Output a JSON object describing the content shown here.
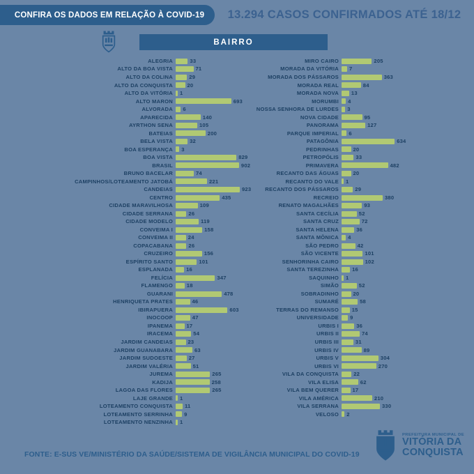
{
  "header": {
    "badge": "CONFIRA OS DADOS EM RELAÇÃO À COVID-19",
    "title": "13.294 CASOS CONFIRMADOS ATÉ 18/12",
    "column_label": "BAIRRO"
  },
  "chart_data": {
    "type": "bar",
    "orientation": "horizontal",
    "title": "13.294 CASOS CONFIRMADOS ATÉ 18/12",
    "unit": "casos confirmados de COVID-19 por bairro",
    "max_value": 923,
    "legend_position": "none",
    "grid": false,
    "left": {
      "categories": [
        "ALEGRIA",
        "ALTO DA BOA VISTA",
        "ALTO DA COLINA",
        "ALTO DA CONQUISTA",
        "ALTO DA VITÓRIA",
        "ALTO MARON",
        "ALVORADA",
        "APARECIDA",
        "AYRTHON SENA",
        "BATEIAS",
        "BELA VISTA",
        "BOA ESPERANÇA",
        "BOA VISTA",
        "BRASIL",
        "BRUNO BACELAR",
        "CAMPINHOS/LOTEAMENTO JATOBÁ",
        "CANDEIAS",
        "CENTRO",
        "CIDADE MARAVILHOSA",
        "CIDADE SERRANA",
        "CIDADE MODELO",
        "CONVEIMA I",
        "CONVEIMA II",
        "COPACABANA",
        "CRUZEIRO",
        "ESPÍRITO SANTO",
        "ESPLANADA",
        "FELÍCIA",
        "FLAMENGO",
        "GUARANI",
        "HENRIQUETA PRATES",
        "IBIRAPUERA",
        "INOCOOP",
        "IPANEMA",
        "IRACEMA",
        "JARDIM CANDEIAS",
        "JARDIM GUANABARA",
        "JARDIM SUDOESTE",
        "JARDIM VALÉRIA",
        "JUREMA",
        "KADIJA",
        "LAGOA DAS FLORES",
        "LAJE GRANDE",
        "LOTEAMENTO CONQUISTA",
        "LOTEAMENTO SERRINHA",
        "LOTEAMENTO NENZINHA"
      ],
      "values": [
        33,
        71,
        29,
        20,
        1,
        693,
        6,
        140,
        105,
        200,
        32,
        3,
        829,
        902,
        74,
        221,
        923,
        435,
        109,
        26,
        119,
        158,
        24,
        26,
        156,
        101,
        16,
        347,
        18,
        478,
        46,
        603,
        47,
        17,
        54,
        23,
        63,
        27,
        51,
        265,
        258,
        265,
        1,
        11,
        9,
        1
      ]
    },
    "right": {
      "categories": [
        "MIRO CAIRO",
        "MORADA DA VITÓRIA",
        "MORADA DOS PÁSSAROS",
        "MORADA REAL",
        "MORADA NOVA",
        "MORUMBI",
        "NOSSA SENHORA DE LURDES",
        "NOVA CIDADE",
        "PANORAMA",
        "PARQUE IMPERIAL",
        "PATAGÔNIA",
        "PEDRINHAS",
        "PETROPÓLIS",
        "PRIMAVERA",
        "RECANTO DAS ÁGUAS",
        "RECANTO DO VALE",
        "RECANTO DOS PÁSSAROS",
        "RECREIO",
        "RENATO MAGALHÃES",
        "SANTA CECÍLIA",
        "SANTA CRUZ",
        "SANTA HELENA",
        "SANTA MÔNICA",
        "SÃO PEDRO",
        "SÃO VICENTE",
        "SENHORINHA CAIRO",
        "SANTA TEREZINHA",
        "SAQUINHO",
        "SIMÃO",
        "SOBRADINHO",
        "SUMARÉ",
        "TERRAS DO REMANSO",
        "UNIVERSIDADE",
        "URBIS I",
        "URBIS II",
        "URBIS III",
        "URBIS IV",
        "URBIS V",
        "URBIS VI",
        "VILA DA CONQUISTA",
        "VILA ELISA",
        "VILA BEM QUERER",
        "VILA AMÉRICA",
        "VILA SERRANA",
        "VELOSO"
      ],
      "values": [
        205,
        7,
        363,
        84,
        13,
        4,
        3,
        95,
        127,
        6,
        634,
        20,
        33,
        482,
        20,
        1,
        29,
        380,
        93,
        52,
        72,
        36,
        4,
        42,
        101,
        102,
        16,
        1,
        52,
        20,
        58,
        15,
        9,
        36,
        74,
        31,
        89,
        304,
        270,
        22,
        62,
        17,
        210,
        330,
        2
      ]
    }
  },
  "footer": {
    "source": "FONTE: E-SUS VE/MINISTÉRIO DA SAÚDE/SISTEMA DE VIGILÂNCIA MUNICIPAL DO COVID-19",
    "logo": {
      "line1": "PREFEITURA MUNICIPAL DE",
      "line2": "VITÓRIA DA",
      "line3": "CONQUISTA"
    }
  },
  "colors": {
    "background": "#6a86a7",
    "panel_blue": "#2d5e8c",
    "bar_green": "#b1c973",
    "label_navy": "#1d4063",
    "title_blue": "#3c6290"
  }
}
